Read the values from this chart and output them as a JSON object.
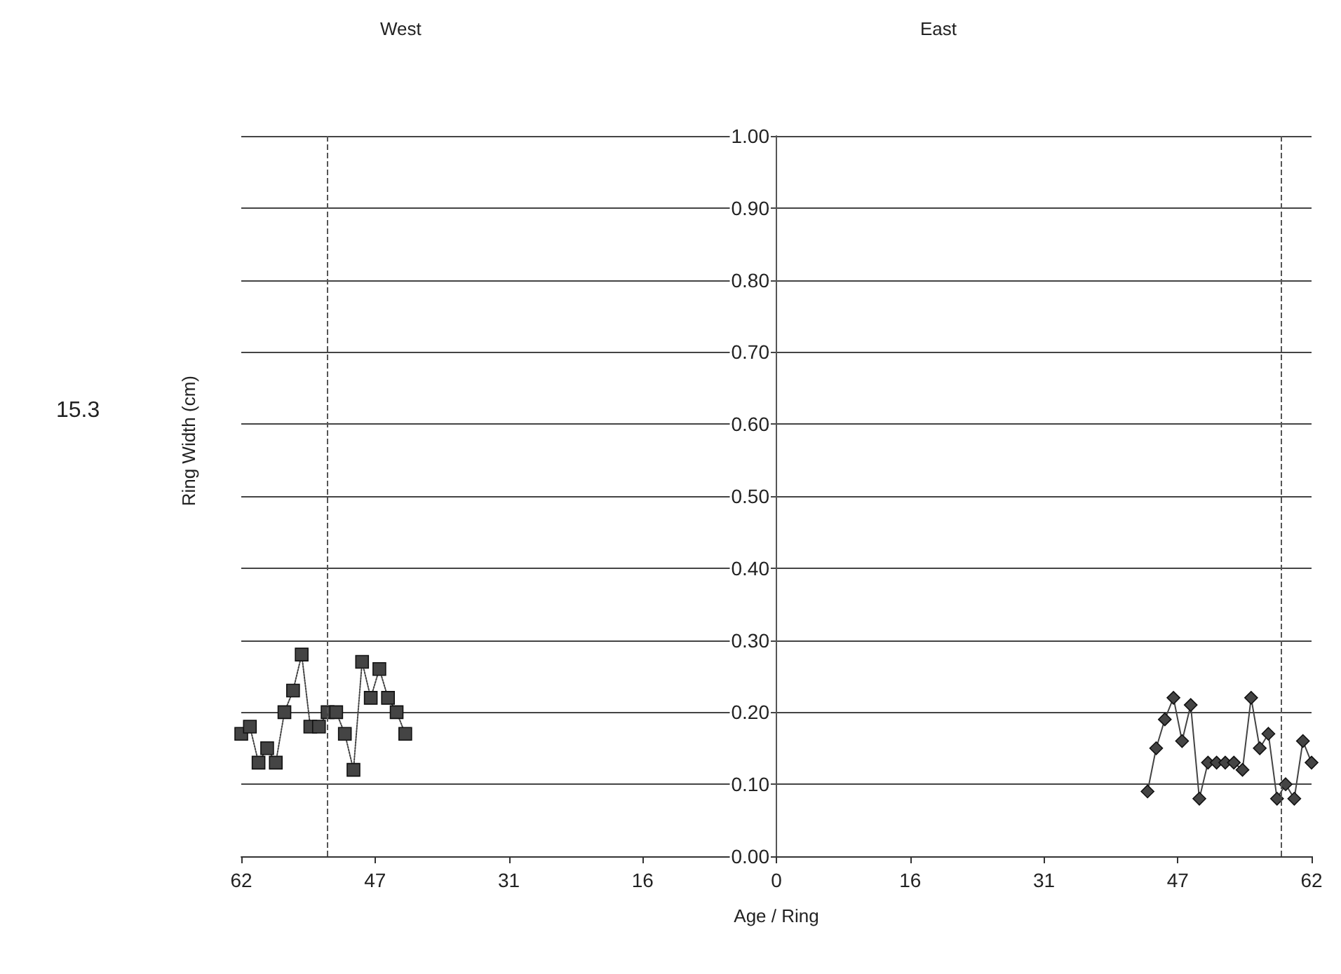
{
  "chart_data": {
    "type": "line",
    "xlabel": "Age / Ring",
    "ylabel": "Ring Width (cm)",
    "annotations": [
      "West",
      "East",
      "15.3"
    ],
    "xlim": [
      -62,
      62
    ],
    "xticks": [
      {
        "value": -62,
        "label": "62"
      },
      {
        "value": -46.5,
        "label": "47"
      },
      {
        "value": -31,
        "label": "31"
      },
      {
        "value": -15.5,
        "label": "16"
      },
      0,
      {
        "value": 15.5,
        "label": "16"
      },
      31,
      {
        "value": 46.5,
        "label": "47"
      },
      62
    ],
    "ylim": [
      0,
      1
    ],
    "yticks": [
      {
        "value": 0,
        "label": "0.00"
      },
      {
        "value": 0.1,
        "label": "0.10"
      },
      {
        "value": 0.2,
        "label": "0.20"
      },
      {
        "value": 0.3,
        "label": "0.30"
      },
      {
        "value": 0.4,
        "label": "0.40"
      },
      {
        "value": 0.5,
        "label": "0.50"
      },
      {
        "value": 0.6,
        "label": "0.60"
      },
      {
        "value": 0.7,
        "label": "0.70"
      },
      {
        "value": 0.8,
        "label": "0.80"
      },
      {
        "value": 0.9,
        "label": "0.90"
      },
      {
        "value": 1,
        "label": "1.00"
      }
    ],
    "grid": "y",
    "ref_lines": [
      {
        "axis": "x",
        "value": -52,
        "label": null,
        "color": "#555555",
        "line_style": "dashed"
      },
      {
        "axis": "x",
        "value": 58.5,
        "label": null,
        "color": "#555555",
        "line_style": "dashed"
      }
    ],
    "series": [
      {
        "color": "#444444",
        "marker": "square",
        "line_style": "dotted",
        "x": [
          -62,
          -61,
          -60,
          -59,
          -58,
          -57,
          -56,
          -55,
          -54,
          -53,
          -52,
          -51,
          -50,
          -49,
          -48,
          -47,
          -46,
          -45,
          -44,
          -43
        ],
        "values": [
          0.17,
          0.18,
          0.13,
          0.15,
          0.13,
          0.2,
          0.23,
          0.28,
          0.18,
          0.18,
          0.2,
          0.2,
          0.17,
          0.12,
          0.27,
          0.22,
          0.26,
          0.22,
          0.2,
          0.17
        ]
      },
      {
        "color": "#444444",
        "marker": "diamond",
        "line_style": "solid",
        "x": [
          43,
          44,
          45,
          46,
          47,
          48,
          49,
          50,
          51,
          52,
          53,
          54,
          55,
          56,
          57,
          58,
          59,
          60,
          61,
          62
        ],
        "values": [
          0.09,
          0.15,
          0.19,
          0.22,
          0.16,
          0.21,
          0.08,
          0.13,
          0.13,
          0.13,
          0.13,
          0.12,
          0.22,
          0.15,
          0.17,
          0.08,
          0.1,
          0.08,
          0.16,
          0.13
        ]
      }
    ]
  }
}
